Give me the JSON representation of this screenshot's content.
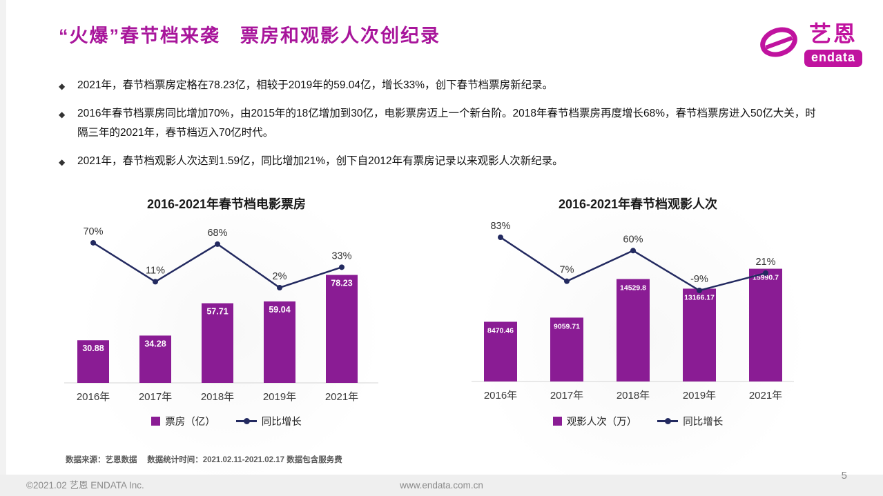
{
  "page": {
    "title": "“火爆”春节档来袭　票房和观影人次创纪录",
    "page_number": "5"
  },
  "logo": {
    "brand_cn": "艺恩",
    "brand_en": "endata"
  },
  "bullets": [
    "2021年，春节档票房定格在78.23亿，相较于2019年的59.04亿，增长33%，创下春节档票房新纪录。",
    "2016年春节档票房同比增加70%，由2015年的18亿增加到30亿，电影票房迈上一个新台阶。2018年春节档票房再度增长68%，春节档票房进入50亿大关，时隔三年的2021年，春节档迈入70亿时代。",
    "2021年，春节档观影人次达到1.59亿，同比增加21%，创下自2012年有票房记录以来观影人次新纪录。"
  ],
  "colors": {
    "brand": "#c0139f",
    "title": "#a8159b",
    "bar": "#8a1c94",
    "line": "#232a60"
  },
  "chart_data": [
    {
      "type": "bar+line",
      "title": "2016-2021年春节档电影票房",
      "categories": [
        "2016年",
        "2017年",
        "2018年",
        "2019年",
        "2021年"
      ],
      "series": [
        {
          "name": "票房（亿）",
          "type": "bar",
          "values": [
            30.88,
            34.28,
            57.71,
            59.04,
            78.23
          ],
          "labels": [
            "30.88",
            "34.28",
            "57.71",
            "59.04",
            "78.23"
          ]
        },
        {
          "name": "同比增长",
          "type": "line",
          "values": [
            70,
            11,
            68,
            2,
            33
          ],
          "labels": [
            "70%",
            "11%",
            "68%",
            "2%",
            "33%"
          ]
        }
      ],
      "legend": [
        "票房（亿）",
        "同比增长"
      ],
      "ylabel": "票房（亿）",
      "y2label": "同比增长",
      "grid": false,
      "legend_position": "bottom"
    },
    {
      "type": "bar+line",
      "title": "2016-2021年春节档观影人次",
      "categories": [
        "2016年",
        "2017年",
        "2018年",
        "2019年",
        "2021年"
      ],
      "series": [
        {
          "name": "观影人次（万）",
          "type": "bar",
          "values": [
            8470.46,
            9059.71,
            14529.8,
            13166.17,
            15990.7
          ],
          "labels": [
            "8470.46",
            "9059.71",
            "14529.8",
            "13166.17",
            "15990.7"
          ]
        },
        {
          "name": "同比增长",
          "type": "line",
          "values": [
            83,
            7,
            60,
            -9,
            21
          ],
          "labels": [
            "83%",
            "7%",
            "60%",
            "-9%",
            "21%"
          ]
        }
      ],
      "legend": [
        "观影人次（万）",
        "同比增长"
      ],
      "ylabel": "观影人次（万）",
      "y2label": "同比增长",
      "grid": false,
      "legend_position": "bottom"
    }
  ],
  "footnote": "数据来源：艺恩数据　 数据统计时间：2021.02.11-2021.02.17 数据包含服务费",
  "footer": {
    "copyright": "©2021.02 艺恩 ENDATA Inc.",
    "website": "www.endata.com.cn"
  }
}
